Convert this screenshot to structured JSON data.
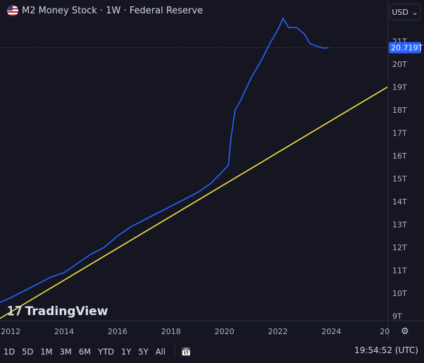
{
  "header": {
    "title": "M2 Money Stock · 1W · Federal Reserve",
    "currency": "USD",
    "flag_icon": "us-flag-icon"
  },
  "watermark": "TradingView",
  "colors": {
    "series": "#2962ff",
    "trendline": "#f5e642",
    "price_label_bg": "#2962ff",
    "background": "#161622"
  },
  "chart_data": {
    "type": "line",
    "title": "M2 Money Stock · 1W · Federal Reserve",
    "x_ticks": [
      "2012",
      "2014",
      "2016",
      "2018",
      "2020",
      "2022",
      "2024",
      "20"
    ],
    "y_ticks": [
      "9T",
      "10T",
      "11T",
      "12T",
      "13T",
      "14T",
      "15T",
      "16T",
      "17T",
      "18T",
      "19T",
      "20T",
      "21T"
    ],
    "xlim": [
      2011.6,
      2026.1
    ],
    "ylim": [
      8.8,
      22.8
    ],
    "last_value_label": "20.719T",
    "last_value": 20.719,
    "series": [
      {
        "x": [
          2011.6,
          2012,
          2012.5,
          2013,
          2013.5,
          2014,
          2014.5,
          2015,
          2015.5,
          2016,
          2016.5,
          2017,
          2017.5,
          2018,
          2018.5,
          2019,
          2019.5,
          2020,
          2020.15,
          2020.25,
          2020.4,
          2020.6,
          2021,
          2021.4,
          2021.7,
          2022,
          2022.2,
          2022.4,
          2022.7,
          2023,
          2023.2,
          2023.4,
          2023.7,
          2023.9
        ],
        "y": [
          9.6,
          9.8,
          10.1,
          10.4,
          10.7,
          10.9,
          11.3,
          11.7,
          12.0,
          12.5,
          12.9,
          13.2,
          13.5,
          13.8,
          14.1,
          14.4,
          14.8,
          15.4,
          15.6,
          16.8,
          18.0,
          18.4,
          19.4,
          20.2,
          20.9,
          21.5,
          22.0,
          21.6,
          21.6,
          21.3,
          20.9,
          20.8,
          20.7,
          20.72
        ]
      },
      {
        "x": [
          2011.6,
          2026.1
        ],
        "y": [
          8.9,
          19.0
        ]
      }
    ]
  },
  "toolbar": {
    "ranges": [
      "1D",
      "5D",
      "1M",
      "3M",
      "6M",
      "YTD",
      "1Y",
      "5Y",
      "All"
    ],
    "calendar_icon": "calendar-goto-icon",
    "time": "19:54:52 (UTC)",
    "settings_icon": "gear-icon"
  }
}
